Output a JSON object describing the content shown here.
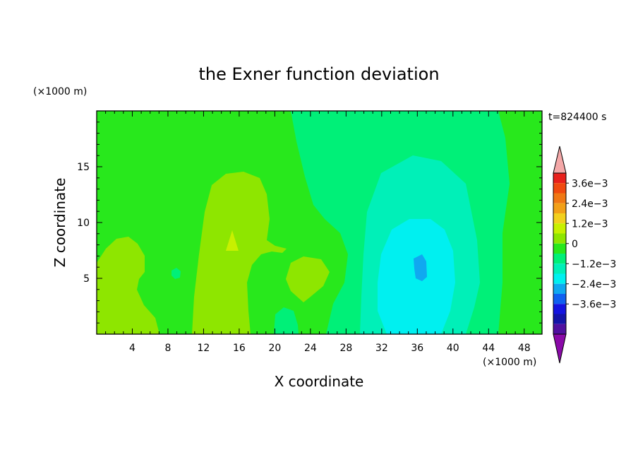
{
  "chart_data": {
    "type": "heatmap",
    "title": "the Exner function deviation",
    "xlabel": "X coordinate",
    "ylabel": "Z coordinate",
    "x_unit": "(×1000 m)",
    "y_unit": "(×1000 m)",
    "time_label": "t=824400 s",
    "xlim": [
      0,
      50
    ],
    "ylim": [
      0,
      20
    ],
    "x_ticks": [
      4,
      8,
      12,
      16,
      20,
      24,
      28,
      32,
      36,
      40,
      44,
      48
    ],
    "y_ticks": [
      5,
      10,
      15
    ],
    "colorbar": {
      "labels": [
        "3.6e−3",
        "2.4e−3",
        "1.2e−3",
        "0",
        "−1.2e−3",
        "−2.4e−3",
        "−3.6e−3"
      ],
      "label_values": [
        0.0036,
        0.0024,
        0.0012,
        0,
        -0.0012,
        -0.0024,
        -0.0036
      ],
      "levels": [
        0.0042,
        0.0036,
        0.003,
        0.0024,
        0.0018,
        0.0012,
        0.0006,
        0,
        -0.0006,
        -0.0012,
        -0.0018,
        -0.0024,
        -0.003,
        -0.0036,
        -0.0042
      ],
      "colors": [
        "#f4a8a8",
        "#e8201c",
        "#f04a10",
        "#f07814",
        "#f2a018",
        "#f2d01e",
        "#c8f000",
        "#8ee600",
        "#28e81c",
        "#00f078",
        "#00f0b8",
        "#00f0f0",
        "#10a8f0",
        "#1060f0",
        "#1414e0",
        "#1414a8",
        "#5010a0",
        "#8a0aa8"
      ],
      "upper_extend_color": "#f4a8a8",
      "lower_extend_color": "#8a0aa8"
    },
    "region_values": {
      "background": 0.0003,
      "left_lobe": 0.0009,
      "left_spot": -0.0003,
      "central_lobe": 0.0009,
      "central_peak": 0.0014,
      "right_lobe": 0.0009,
      "bottom_spot": -0.0003,
      "outer_negative": -0.0003,
      "mid_negative": -0.0009,
      "inner_negative": -0.0015,
      "core_negative": -0.0021
    },
    "region_colors": {
      "background": "#28e81c",
      "left_lobe": "#8ee600",
      "left_spot": "#00f078",
      "central_lobe": "#8ee600",
      "central_peak": "#c8f000",
      "right_lobe": "#8ee600",
      "bottom_spot": "#00f078",
      "outer_negative": "#00f078",
      "mid_negative": "#00f0b8",
      "inner_negative": "#00f0f0",
      "core_negative": "#10a8f0"
    }
  }
}
